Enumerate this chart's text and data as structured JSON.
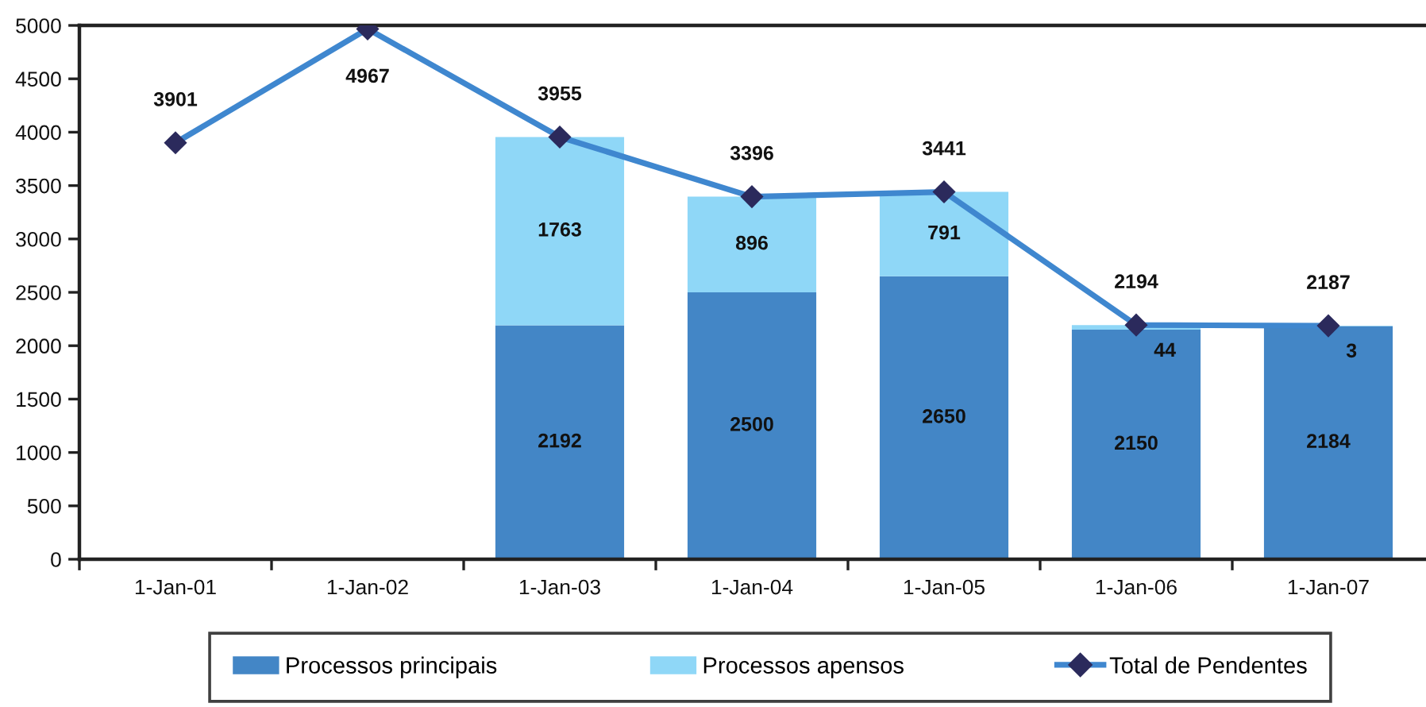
{
  "chart_data": {
    "type": "bar",
    "stacked": true,
    "categories": [
      "1-Jan-01",
      "1-Jan-02",
      "1-Jan-03",
      "1-Jan-04",
      "1-Jan-05",
      "1-Jan-06",
      "1-Jan-07"
    ],
    "series": [
      {
        "name": "Processos principais",
        "color": "#4386c6",
        "values": [
          null,
          null,
          2192,
          2500,
          2650,
          2150,
          2184
        ]
      },
      {
        "name": "Processos apensos",
        "color": "#8fd7f7",
        "values": [
          null,
          null,
          1763,
          896,
          791,
          44,
          3
        ]
      },
      {
        "name": "Total de Pendentes",
        "type": "line",
        "color": "#3f87cf",
        "colors": [
          "#2b2a5c",
          "#2b2a5c",
          "#2b2a5c",
          "#2b2a5c",
          "#2b2a5c",
          "#2b2a5c",
          "#2b2a5c"
        ],
        "values": [
          3901,
          4967,
          3955,
          3396,
          3441,
          2194,
          2187
        ]
      }
    ],
    "ylim": [
      0,
      5000
    ],
    "yticks": [
      0,
      500,
      1000,
      1500,
      2000,
      2500,
      3000,
      3500,
      4000,
      4500,
      5000
    ],
    "data_labels": true,
    "legend": "bottom",
    "marker": "diamond",
    "line_style": "solid",
    "grid": false
  }
}
